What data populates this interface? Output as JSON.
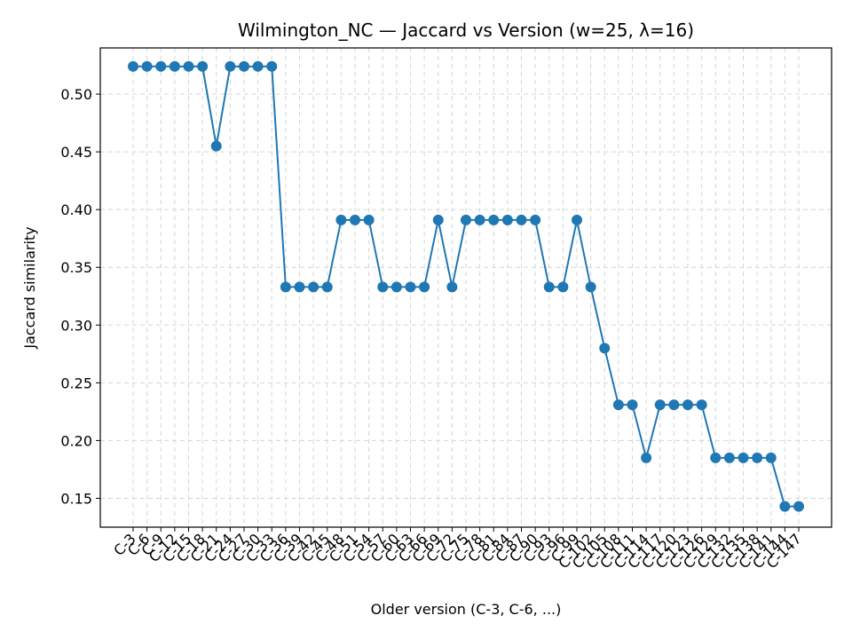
{
  "chart_data": {
    "type": "line",
    "title": "Wilmington_NC — Jaccard vs Version (w=25, λ=16)",
    "xlabel": "Older version (C-3, C-6, ...)",
    "ylabel": "Jaccard similarity",
    "ylim": [
      0.125,
      0.54
    ],
    "yticks": [
      0.15,
      0.2,
      0.25,
      0.3,
      0.35,
      0.4,
      0.45,
      0.5
    ],
    "ytick_labels": [
      "0.15",
      "0.20",
      "0.25",
      "0.30",
      "0.35",
      "0.40",
      "0.45",
      "0.50"
    ],
    "grid": true,
    "color": "#1f77b4",
    "categories": [
      "C-3",
      "C-6",
      "C-9",
      "C-12",
      "C-15",
      "C-18",
      "C-21",
      "C-24",
      "C-27",
      "C-30",
      "C-33",
      "C-36",
      "C-39",
      "C-42",
      "C-45",
      "C-48",
      "C-51",
      "C-54",
      "C-57",
      "C-60",
      "C-63",
      "C-66",
      "C-69",
      "C-72",
      "C-75",
      "C-78",
      "C-81",
      "C-84",
      "C-87",
      "C-90",
      "C-93",
      "C-96",
      "C-99",
      "C-102",
      "C-105",
      "C-108",
      "C-111",
      "C-114",
      "C-117",
      "C-120",
      "C-123",
      "C-126",
      "C-129",
      "C-132",
      "C-135",
      "C-138",
      "C-141",
      "C-144",
      "C-147"
    ],
    "series": [
      {
        "values": [
          0.524,
          0.524,
          0.524,
          0.524,
          0.524,
          0.524,
          0.455,
          0.524,
          0.524,
          0.524,
          0.524,
          0.333,
          0.333,
          0.333,
          0.333,
          0.391,
          0.391,
          0.391,
          0.333,
          0.333,
          0.333,
          0.333,
          0.391,
          0.333,
          0.391,
          0.391,
          0.391,
          0.391,
          0.391,
          0.391,
          0.333,
          0.333,
          0.391,
          0.333,
          0.28,
          0.231,
          0.231,
          0.185,
          0.231,
          0.231,
          0.231,
          0.231,
          0.185,
          0.185,
          0.185,
          0.185,
          0.185,
          0.143,
          0.143
        ]
      }
    ]
  }
}
